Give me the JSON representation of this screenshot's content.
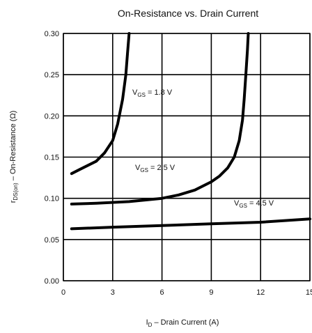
{
  "chart_data": {
    "type": "line",
    "title": "On-Resistance vs. Drain Current",
    "xlabel_main": "I",
    "xlabel_sub": "D",
    "xlabel_rest": " – Drain Current (A)",
    "ylabel_main": "r",
    "ylabel_sub": "DS(on)",
    "ylabel_rest": " – On-Resistance (Ω)",
    "xlim": [
      0,
      15
    ],
    "ylim": [
      0,
      0.3
    ],
    "x_ticks": [
      0,
      3,
      6,
      9,
      12,
      15
    ],
    "x_tick_labels": [
      "0",
      "3",
      "6",
      "9",
      "12",
      "15"
    ],
    "y_ticks": [
      0,
      0.05,
      0.1,
      0.15,
      0.2,
      0.25,
      0.3
    ],
    "y_tick_labels": [
      "0.00",
      "0.05",
      "0.10",
      "0.15",
      "0.20",
      "0.25",
      "0.30"
    ],
    "grid": true,
    "series": [
      {
        "name": "V",
        "name_sub": "GS",
        "name_rest": " = 1.8 V",
        "x": [
          0.5,
          1.0,
          1.5,
          2.0,
          2.5,
          3.0,
          3.3,
          3.6,
          3.8,
          3.9,
          4.0
        ],
        "y": [
          0.13,
          0.135,
          0.14,
          0.145,
          0.155,
          0.17,
          0.19,
          0.22,
          0.25,
          0.275,
          0.3
        ]
      },
      {
        "name": "V",
        "name_sub": "GS",
        "name_rest": " = 2.5 V",
        "x": [
          0.5,
          2.0,
          4.0,
          6.0,
          7.0,
          8.0,
          9.0,
          9.5,
          10.0,
          10.4,
          10.7,
          10.9,
          11.0,
          11.1,
          11.2,
          11.25
        ],
        "y": [
          0.093,
          0.094,
          0.096,
          0.1,
          0.104,
          0.11,
          0.12,
          0.127,
          0.137,
          0.15,
          0.17,
          0.195,
          0.22,
          0.25,
          0.28,
          0.3
        ]
      },
      {
        "name": "V",
        "name_sub": "GS",
        "name_rest": " = 4.5 V",
        "x": [
          0.5,
          3.0,
          6.0,
          9.0,
          12.0,
          15.0
        ],
        "y": [
          0.063,
          0.065,
          0.067,
          0.069,
          0.071,
          0.075
        ]
      }
    ]
  }
}
